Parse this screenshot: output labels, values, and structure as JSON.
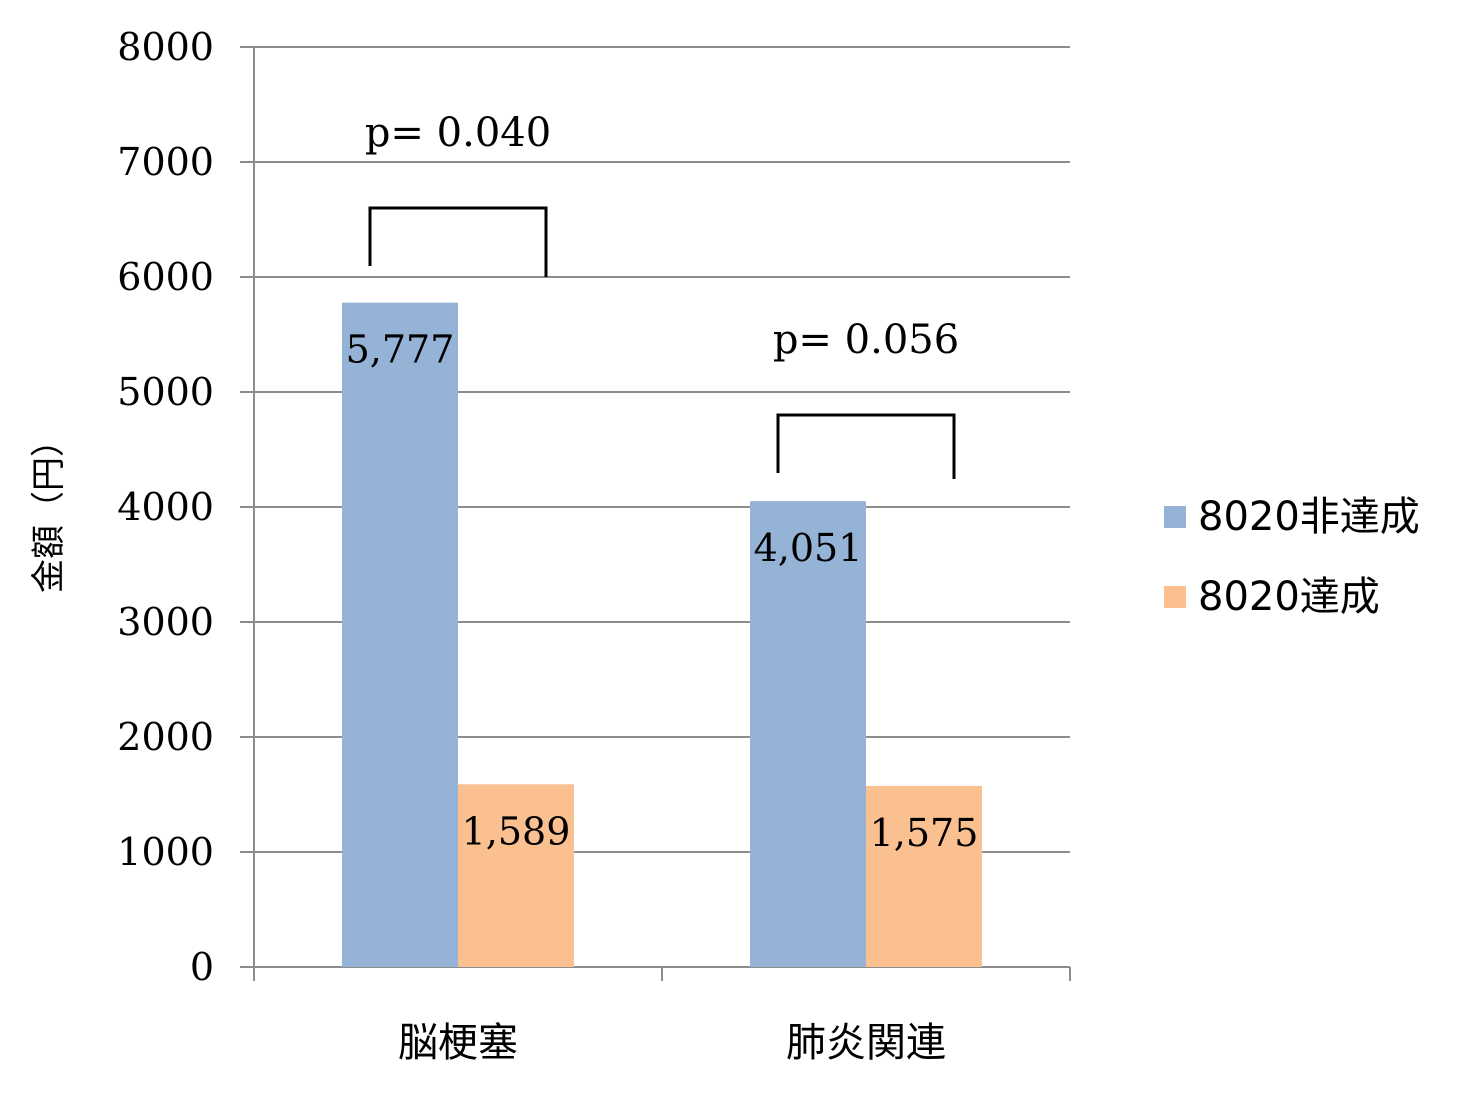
{
  "chart_data": {
    "type": "bar",
    "title": "",
    "xlabel": "",
    "ylabel": "金額（円）",
    "ylim": [
      0,
      8000
    ],
    "yticks": [
      0,
      1000,
      2000,
      3000,
      4000,
      5000,
      6000,
      7000,
      8000
    ],
    "ytick_labels": [
      "0",
      "1000",
      "2000",
      "3000",
      "4000",
      "5000",
      "6000",
      "7000",
      "8000"
    ],
    "grid": true,
    "legend_position": "right",
    "categories": [
      "脳梗塞",
      "肺炎関連"
    ],
    "series": [
      {
        "name": "8020非達成",
        "color": "#95b3d7",
        "values": [
          5777,
          4051
        ],
        "labels": [
          "5,777",
          "4,051"
        ]
      },
      {
        "name": "8020達成",
        "color": "#fac090",
        "values": [
          1589,
          1575
        ],
        "labels": [
          "1,589",
          "1,575"
        ]
      }
    ],
    "annotations": [
      {
        "category_index": 0,
        "text": "p= 0.040",
        "bracket_top": 6600
      },
      {
        "category_index": 1,
        "text": "p= 0.056",
        "bracket_top": 4800
      }
    ]
  }
}
